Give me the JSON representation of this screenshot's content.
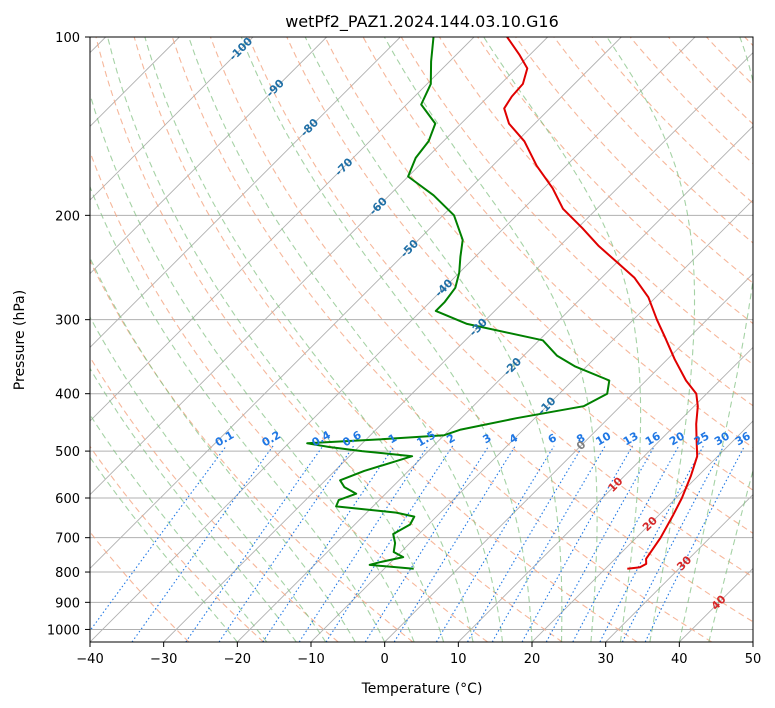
{
  "chart_data": {
    "type": "line",
    "title": "wetPf2_PAZ1.2024.144.03.10.G16",
    "xlabel": "Temperature (°C)",
    "ylabel": "Pressure (hPa)",
    "xlim": [
      -40,
      50
    ],
    "ylim": [
      1050,
      100
    ],
    "y_scale": "log",
    "grid": true,
    "x_ticks": [
      "−40",
      "−30",
      "−20",
      "−10",
      "0",
      "10",
      "20",
      "30",
      "40",
      "50"
    ],
    "y_ticks": [
      "100",
      "200",
      "300",
      "400",
      "500",
      "600",
      "700",
      "800",
      "900",
      "1000"
    ],
    "x_tick_values": [
      -40,
      -30,
      -20,
      -10,
      0,
      10,
      20,
      30,
      40,
      50
    ],
    "y_tick_values": [
      100,
      200,
      300,
      400,
      500,
      600,
      700,
      800,
      900,
      1000
    ],
    "skew_deg": 45,
    "colors": {
      "temperature": "#e00000",
      "dewpoint": "#008000",
      "dry_adiabat": "#f4a582",
      "moist_adiabat": "#7fbf7f",
      "mixing_ratio": "#1f77e4",
      "isotherm_label": "#1f6fa6",
      "isotherm_label_warm": "#d62728",
      "isotherm_label_zero": "#808080",
      "grid": "#b0b0b0"
    },
    "isotherm_labels": [
      "-100",
      "-90",
      "-80",
      "-70",
      "-60",
      "-50",
      "-40",
      "-30",
      "-20",
      "-10",
      "0",
      "10",
      "20",
      "30",
      "40"
    ],
    "isotherm_label_values": [
      -100,
      -90,
      -80,
      -70,
      -60,
      -50,
      -40,
      -30,
      -20,
      -10,
      0,
      10,
      20,
      30,
      40
    ],
    "mixing_ratio_labels": [
      "0.1",
      "0.2",
      "0.4",
      "0.6",
      "1",
      "1.5",
      "2",
      "3",
      "4",
      "6",
      "8",
      "10",
      "13",
      "16",
      "20",
      "25",
      "30",
      "36"
    ],
    "mixing_ratio_values": [
      0.1,
      0.2,
      0.4,
      0.6,
      1,
      1.5,
      2,
      3,
      4,
      6,
      8,
      10,
      13,
      16,
      20,
      25,
      30,
      36
    ],
    "series": [
      {
        "key": "temperature",
        "points": [
          [
            790,
            23.0
          ],
          [
            785,
            24.5
          ],
          [
            775,
            24.9
          ],
          [
            760,
            24.2
          ],
          [
            700,
            23.3
          ],
          [
            640,
            21.9
          ],
          [
            600,
            20.8
          ],
          [
            550,
            19.0
          ],
          [
            510,
            17.2
          ],
          [
            480,
            15.0
          ],
          [
            450,
            12.7
          ],
          [
            420,
            10.5
          ],
          [
            400,
            8.6
          ],
          [
            380,
            5.4
          ],
          [
            350,
            1.0
          ],
          [
            320,
            -3.5
          ],
          [
            300,
            -6.8
          ],
          [
            275,
            -11.0
          ],
          [
            255,
            -15.5
          ],
          [
            240,
            -20.0
          ],
          [
            225,
            -24.8
          ],
          [
            210,
            -29.4
          ],
          [
            195,
            -34.6
          ],
          [
            180,
            -38.8
          ],
          [
            165,
            -44.0
          ],
          [
            150,
            -49.0
          ],
          [
            140,
            -53.5
          ],
          [
            132,
            -56.2
          ],
          [
            126,
            -56.8
          ],
          [
            120,
            -57.0
          ],
          [
            113,
            -58.5
          ],
          [
            107,
            -61.5
          ],
          [
            100,
            -65.5
          ]
        ]
      },
      {
        "key": "dewpoint",
        "points": [
          [
            790,
            -6.0
          ],
          [
            778,
            -12.5
          ],
          [
            770,
            -11.5
          ],
          [
            755,
            -9.0
          ],
          [
            740,
            -11.0
          ],
          [
            715,
            -12.0
          ],
          [
            690,
            -13.5
          ],
          [
            665,
            -12.5
          ],
          [
            645,
            -13.0
          ],
          [
            635,
            -16.0
          ],
          [
            620,
            -25.0
          ],
          [
            605,
            -25.5
          ],
          [
            590,
            -24.0
          ],
          [
            575,
            -26.5
          ],
          [
            560,
            -28.0
          ],
          [
            540,
            -26.0
          ],
          [
            520,
            -23.0
          ],
          [
            510,
            -21.5
          ],
          [
            500,
            -29.0
          ],
          [
            492,
            -34.0
          ],
          [
            485,
            -37.5
          ],
          [
            478,
            -28.5
          ],
          [
            470,
            -20.0
          ],
          [
            460,
            -18.5
          ],
          [
            440,
            -12.5
          ],
          [
            420,
            -5.0
          ],
          [
            400,
            -3.5
          ],
          [
            380,
            -5.0
          ],
          [
            360,
            -11.5
          ],
          [
            345,
            -15.5
          ],
          [
            325,
            -19.5
          ],
          [
            305,
            -32.0
          ],
          [
            290,
            -38.0
          ],
          [
            280,
            -38.0
          ],
          [
            265,
            -38.5
          ],
          [
            250,
            -40.0
          ],
          [
            235,
            -42.0
          ],
          [
            220,
            -44.0
          ],
          [
            200,
            -48.5
          ],
          [
            185,
            -54.0
          ],
          [
            172,
            -60.0
          ],
          [
            160,
            -61.5
          ],
          [
            150,
            -62.0
          ],
          [
            140,
            -63.5
          ],
          [
            130,
            -68.0
          ],
          [
            120,
            -69.5
          ],
          [
            110,
            -72.5
          ],
          [
            100,
            -75.5
          ]
        ]
      }
    ]
  }
}
